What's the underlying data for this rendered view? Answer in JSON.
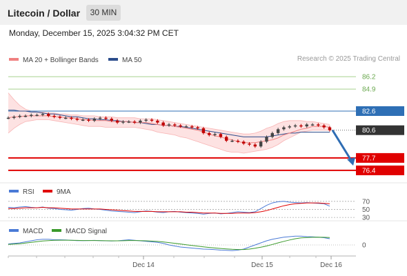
{
  "header": {
    "title": "Litecoin / Dollar",
    "timeframe": "30 MIN"
  },
  "datetime": "Monday, December 15, 2025 3:04:32 PM CET",
  "copyright": "Research © 2025 Trading Central",
  "colors": {
    "bollinger": "#f08080",
    "ma50": "#2c4d8c",
    "price_up": "#2e6fb5",
    "support": "#e00000",
    "resistance": "#6aa84f",
    "current": "#333333",
    "rsi": "#4a7ad6",
    "rsi_ma": "#e00000",
    "macd": "#4a7ad6",
    "macd_signal": "#3a9a2a"
  },
  "chart_data": [
    {
      "type": "line",
      "title": "",
      "legend": [
        {
          "name": "MA 20 + Bollinger Bands",
          "color": "#f08080"
        },
        {
          "name": "MA 50",
          "color": "#2c4d8c"
        }
      ],
      "x_ticks": [
        "Dec 14",
        "Dec 15",
        "Dec 16"
      ],
      "ylim": [
        75.6,
        87.0
      ],
      "price_levels": [
        {
          "label": "86.2",
          "value": 86.2,
          "kind": "resistance"
        },
        {
          "label": "84.9",
          "value": 84.9,
          "kind": "resistance"
        },
        {
          "label": "82.6",
          "value": 82.6,
          "kind": "pivot"
        },
        {
          "label": "80.6",
          "value": 80.6,
          "kind": "current"
        },
        {
          "label": "77.7",
          "value": 77.7,
          "kind": "support"
        },
        {
          "label": "76.4",
          "value": 76.4,
          "kind": "support"
        }
      ],
      "series": [
        {
          "name": "Price",
          "values": [
            81.9,
            82.0,
            82.1,
            82.1,
            82.2,
            82.2,
            82.3,
            82.1,
            82.0,
            81.9,
            81.9,
            81.8,
            81.7,
            81.7,
            81.6,
            81.8,
            81.9,
            81.8,
            81.6,
            81.4,
            81.5,
            81.5,
            81.4,
            81.6,
            81.7,
            81.6,
            81.4,
            81.1,
            81.2,
            81.1,
            81.0,
            81.0,
            80.9,
            80.8,
            80.3,
            80.1,
            80.2,
            79.9,
            79.5,
            79.5,
            79.4,
            79.2,
            79.1,
            78.9,
            79.4,
            79.9,
            80.3,
            80.7,
            80.9,
            81.0,
            81.1,
            81.0,
            81.2,
            81.2,
            81.1,
            80.9,
            80.6
          ]
        },
        {
          "name": "MA 20",
          "values": [
            81.9,
            82.0,
            82.0,
            82.1,
            82.1,
            82.1,
            82.1,
            82.1,
            82.0,
            82.0,
            81.9,
            81.9,
            81.8,
            81.7,
            81.7,
            81.6,
            81.6,
            81.6,
            81.5,
            81.5,
            81.5,
            81.5,
            81.4,
            81.4,
            81.4,
            81.3,
            81.2,
            81.1,
            81.1,
            81.0,
            80.9,
            80.8,
            80.7,
            80.6,
            80.4,
            80.2,
            80.0,
            79.9,
            79.7,
            79.6,
            79.4,
            79.3,
            79.3,
            79.3,
            79.4,
            79.5,
            79.6,
            79.8,
            80.1,
            80.3,
            80.5,
            80.7,
            80.8,
            81.0,
            81.0,
            81.0,
            80.9
          ]
        },
        {
          "name": "MA 50",
          "values": [
            82.7,
            82.7,
            82.6,
            82.6,
            82.5,
            82.5,
            82.4,
            82.3,
            82.3,
            82.2,
            82.1,
            82.0,
            82.0,
            81.9,
            81.8,
            81.8,
            81.7,
            81.7,
            81.6,
            81.6,
            81.5,
            81.5,
            81.4,
            81.4,
            81.3,
            81.2,
            81.2,
            81.1,
            81.1,
            81.0,
            81.0,
            80.9,
            80.8,
            80.7,
            80.6,
            80.5,
            80.4,
            80.3,
            80.2,
            80.1,
            80.0,
            79.9,
            79.9,
            79.9,
            79.9,
            79.9,
            80.0,
            80.1,
            80.2,
            80.3,
            80.3,
            80.4,
            80.4,
            80.4,
            80.4,
            80.4,
            80.4
          ]
        },
        {
          "name": "Bollinger Upper",
          "values": [
            84.5,
            83.8,
            83.2,
            82.8,
            82.6,
            82.5,
            82.5,
            82.4,
            82.4,
            82.3,
            82.3,
            82.2,
            82.2,
            82.1,
            82.1,
            82.1,
            82.0,
            82.0,
            82.0,
            81.9,
            81.9,
            81.9,
            81.9,
            81.8,
            81.8,
            81.8,
            81.7,
            81.6,
            81.5,
            81.4,
            81.3,
            81.2,
            81.1,
            81.0,
            80.9,
            80.8,
            80.7,
            80.6,
            80.5,
            80.4,
            80.3,
            80.2,
            80.2,
            80.3,
            80.5,
            80.8,
            81.0,
            81.3,
            81.5,
            81.6,
            81.6,
            81.6,
            81.5,
            81.5,
            81.4,
            81.3,
            81.2
          ]
        },
        {
          "name": "Bollinger Lower",
          "values": [
            80.3,
            80.8,
            81.2,
            81.5,
            81.6,
            81.7,
            81.7,
            81.7,
            81.6,
            81.5,
            81.4,
            81.3,
            81.2,
            81.1,
            81.0,
            81.0,
            81.0,
            80.9,
            80.9,
            80.9,
            80.9,
            80.9,
            80.9,
            80.8,
            80.7,
            80.6,
            80.4,
            80.3,
            80.2,
            80.1,
            79.9,
            79.8,
            79.6,
            79.4,
            79.2,
            79.0,
            78.8,
            78.6,
            78.4,
            78.3,
            78.3,
            78.2,
            78.3,
            78.4,
            78.5,
            78.6,
            78.8,
            79.1,
            79.5,
            79.8,
            80.1,
            80.4,
            80.5,
            80.6,
            80.6,
            80.6,
            80.6
          ]
        }
      ]
    },
    {
      "type": "line",
      "title": "",
      "legend": [
        {
          "name": "RSI",
          "color": "#4a7ad6"
        },
        {
          "name": "9MA",
          "color": "#e00000"
        }
      ],
      "levels": [
        70,
        50,
        30
      ],
      "ylim": [
        25,
        80
      ],
      "series": [
        {
          "name": "RSI",
          "values": [
            55,
            54,
            56,
            57,
            55,
            54,
            56,
            53,
            52,
            50,
            49,
            48,
            50,
            52,
            53,
            51,
            50,
            48,
            46,
            45,
            44,
            43,
            42,
            44,
            46,
            45,
            43,
            42,
            44,
            45,
            43,
            42,
            41,
            40,
            38,
            40,
            41,
            39,
            40,
            42,
            44,
            43,
            42,
            44,
            52,
            60,
            66,
            69,
            70,
            68,
            67,
            66,
            67,
            66,
            65,
            64,
            58
          ]
        },
        {
          "name": "9MA",
          "values": [
            52,
            52,
            53,
            54,
            54,
            54,
            55,
            54,
            54,
            53,
            52,
            51,
            51,
            51,
            51,
            51,
            51,
            50,
            49,
            48,
            47,
            46,
            45,
            45,
            45,
            45,
            44,
            44,
            44,
            44,
            44,
            43,
            43,
            42,
            41,
            41,
            41,
            40,
            40,
            40,
            41,
            41,
            41,
            42,
            44,
            47,
            51,
            55,
            59,
            62,
            64,
            65,
            66,
            66,
            66,
            65,
            64
          ]
        }
      ]
    },
    {
      "type": "line",
      "title": "",
      "legend": [
        {
          "name": "MACD",
          "color": "#4a7ad6"
        },
        {
          "name": "MACD Signal",
          "color": "#3a9a2a"
        }
      ],
      "levels": [
        0
      ],
      "y_ticks": [
        "0"
      ],
      "ylim": [
        -1.0,
        1.0
      ],
      "series": [
        {
          "name": "MACD",
          "values": [
            0.1,
            0.15,
            0.2,
            0.3,
            0.4,
            0.5,
            0.55,
            0.55,
            0.5,
            0.5,
            0.48,
            0.45,
            0.42,
            0.42,
            0.43,
            0.44,
            0.42,
            0.4,
            0.38,
            0.4,
            0.45,
            0.5,
            0.45,
            0.4,
            0.35,
            0.3,
            0.25,
            0.15,
            0.0,
            -0.1,
            -0.2,
            -0.25,
            -0.3,
            -0.35,
            -0.4,
            -0.42,
            -0.45,
            -0.5,
            -0.52,
            -0.55,
            -0.5,
            -0.4,
            -0.2,
            0.0,
            0.2,
            0.4,
            0.55,
            0.65,
            0.75,
            0.8,
            0.85,
            0.85,
            0.8,
            0.78,
            0.75,
            0.7,
            0.6
          ]
        },
        {
          "name": "MACD Signal",
          "values": [
            0.05,
            0.08,
            0.12,
            0.18,
            0.25,
            0.32,
            0.38,
            0.42,
            0.45,
            0.46,
            0.46,
            0.45,
            0.44,
            0.43,
            0.43,
            0.43,
            0.42,
            0.41,
            0.4,
            0.4,
            0.41,
            0.43,
            0.43,
            0.42,
            0.4,
            0.37,
            0.34,
            0.29,
            0.23,
            0.16,
            0.09,
            0.02,
            -0.05,
            -0.12,
            -0.18,
            -0.24,
            -0.29,
            -0.34,
            -0.38,
            -0.42,
            -0.44,
            -0.44,
            -0.4,
            -0.32,
            -0.22,
            -0.1,
            0.05,
            0.2,
            0.35,
            0.48,
            0.6,
            0.68,
            0.72,
            0.74,
            0.75,
            0.74,
            0.72
          ]
        }
      ]
    }
  ]
}
